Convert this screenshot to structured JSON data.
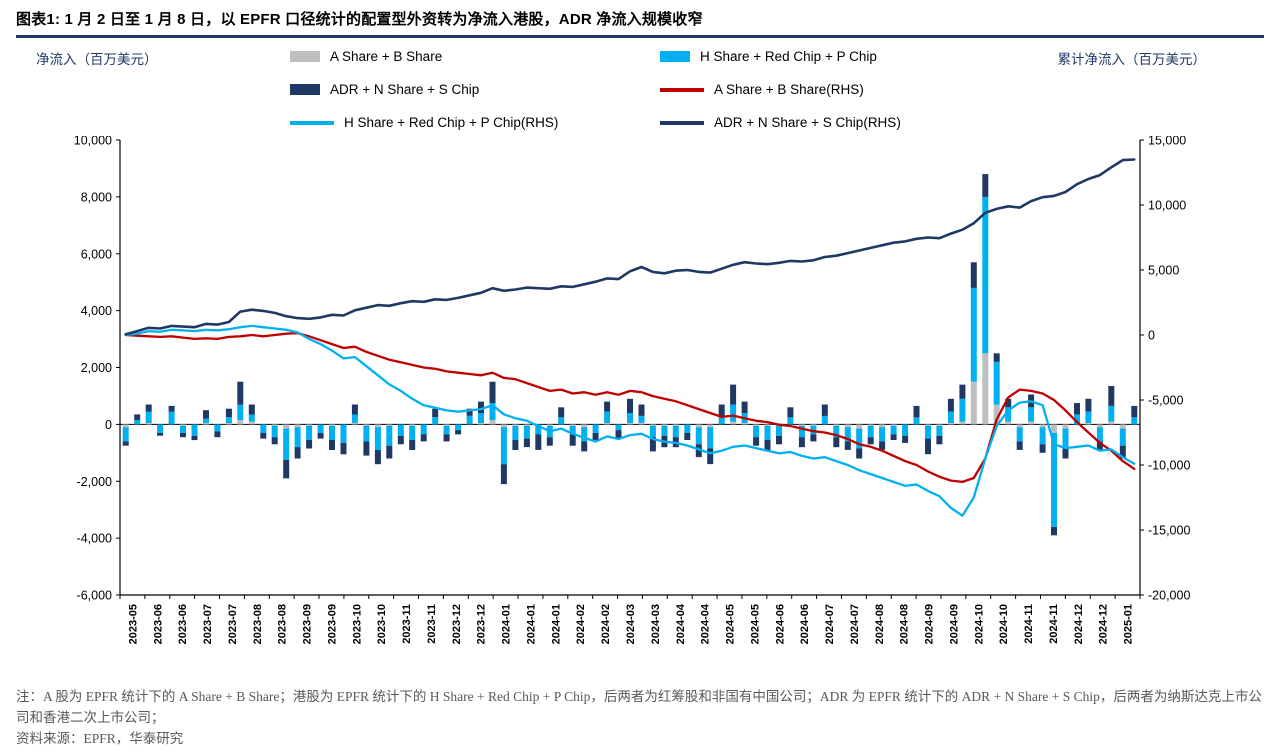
{
  "header": {
    "title": "图表1:  1 月 2 日至 1 月 8 日，以 EPFR 口径统计的配置型外资转为净流入港股，ADR 净流入规模收窄"
  },
  "axes": {
    "left_label": "净流入（百万美元）",
    "right_label": "累计净流入（百万美元）"
  },
  "legend": {
    "items": [
      {
        "label": "A Share + B Share",
        "swatch": "bar",
        "color": "#BFBFBF"
      },
      {
        "label": "H Share + Red Chip + P Chip",
        "swatch": "bar",
        "color": "#00B0F0"
      },
      {
        "label": "ADR + N Share + S Chip",
        "swatch": "bar",
        "color": "#1F3864"
      },
      {
        "label": "A Share + B Share(RHS)",
        "swatch": "line",
        "color": "#C00000"
      },
      {
        "label": "H Share + Red Chip + P Chip(RHS)",
        "swatch": "line",
        "color": "#00B0F0"
      },
      {
        "label": "ADR + N Share + S Chip(RHS)",
        "swatch": "line",
        "color": "#1F3864"
      }
    ]
  },
  "chart_data": {
    "type": "combo-stacked-bar-line",
    "title": "1月2日至1月8日，以EPFR口径统计的配置型外资转为净流入港股，ADR净流入规模收窄",
    "frequency": "weekly",
    "x_start": "2023-05",
    "x_end": "2025-01",
    "n_points": 89,
    "x_tick_labels": [
      "2023-05",
      "2023-06",
      "2023-06",
      "2023-07",
      "2023-07",
      "2023-08",
      "2023-08",
      "2023-09",
      "2023-09",
      "2023-10",
      "2023-10",
      "2023-11",
      "2023-11",
      "2023-12",
      "2023-12",
      "2024-01",
      "2024-01",
      "2024-01",
      "2024-02",
      "2024-02",
      "2024-03",
      "2024-03",
      "2024-04",
      "2024-04",
      "2024-05",
      "2024-05",
      "2024-06",
      "2024-06",
      "2024-07",
      "2024-07",
      "2024-08",
      "2024-08",
      "2024-09",
      "2024-09",
      "2024-10",
      "2024-10",
      "2024-11",
      "2024-11",
      "2024-12",
      "2024-12",
      "2025-01"
    ],
    "left_axis": {
      "label": "净流入（百万美元）",
      "min": -6000,
      "max": 10000,
      "ticks": [
        10000,
        8000,
        6000,
        4000,
        2000,
        0,
        -2000,
        -4000,
        -6000
      ]
    },
    "right_axis": {
      "label": "累计净流入（百万美元）",
      "min": -20000,
      "max": 15000,
      "ticks": [
        15000,
        10000,
        5000,
        0,
        -5000,
        -10000,
        -15000,
        -20000
      ]
    },
    "bar_series": [
      {
        "name": "A Share + B Share",
        "axis": "left",
        "color": "#BFBFBF",
        "values": [
          -100,
          0,
          50,
          0,
          0,
          -50,
          0,
          50,
          0,
          50,
          150,
          100,
          0,
          -50,
          -150,
          -100,
          -50,
          0,
          -50,
          0,
          50,
          -50,
          -100,
          -50,
          0,
          -50,
          0,
          0,
          -50,
          0,
          0,
          50,
          150,
          -100,
          -50,
          -50,
          0,
          -50,
          0,
          -50,
          -100,
          0,
          50,
          0,
          50,
          50,
          -50,
          -50,
          -50,
          0,
          -100,
          -100,
          0,
          100,
          50,
          -50,
          -50,
          -50,
          0,
          -50,
          -50,
          0,
          -50,
          -100,
          -150,
          -50,
          -100,
          -50,
          0,
          0,
          -50,
          -50,
          50,
          100,
          1500,
          2500,
          700,
          100,
          -100,
          100,
          -100,
          -300,
          -150,
          0,
          50,
          -100,
          100,
          -150,
          0
        ]
      },
      {
        "name": "H Share + Red Chip + P Chip",
        "axis": "left",
        "color": "#00B0F0",
        "values": [
          -500,
          150,
          400,
          -300,
          450,
          -250,
          -400,
          150,
          -250,
          200,
          550,
          250,
          -300,
          -400,
          -1100,
          -700,
          -500,
          -300,
          -500,
          -650,
          300,
          -550,
          -800,
          -700,
          -400,
          -500,
          -350,
          250,
          -300,
          -200,
          300,
          350,
          600,
          -1300,
          -500,
          -450,
          -350,
          -400,
          250,
          -300,
          -500,
          -300,
          400,
          -200,
          350,
          250,
          -400,
          -350,
          -400,
          -300,
          -600,
          -750,
          300,
          600,
          350,
          -400,
          -500,
          -350,
          250,
          -400,
          -300,
          300,
          -400,
          -500,
          -700,
          -400,
          -500,
          -300,
          -400,
          250,
          -450,
          -350,
          400,
          800,
          3300,
          5500,
          1500,
          500,
          -500,
          500,
          -600,
          -3300,
          -700,
          350,
          400,
          -500,
          550,
          -600,
          250
        ]
      },
      {
        "name": "ADR + N Share + S Chip",
        "axis": "left",
        "color": "#1F3864",
        "values": [
          -150,
          200,
          250,
          -100,
          200,
          -150,
          -150,
          300,
          -200,
          300,
          800,
          350,
          -200,
          -250,
          -650,
          -400,
          -300,
          -200,
          -350,
          -400,
          350,
          -500,
          -500,
          -450,
          -300,
          -350,
          -250,
          300,
          -250,
          -150,
          250,
          400,
          750,
          -700,
          -350,
          -300,
          -550,
          -300,
          350,
          -400,
          -350,
          -250,
          350,
          -300,
          500,
          400,
          -500,
          -400,
          -350,
          -250,
          -450,
          -550,
          400,
          700,
          400,
          -300,
          -400,
          -300,
          350,
          -350,
          -250,
          400,
          -350,
          -300,
          -350,
          -250,
          -300,
          -200,
          -250,
          400,
          -550,
          -300,
          450,
          500,
          900,
          800,
          300,
          300,
          -300,
          450,
          -300,
          -300,
          -350,
          400,
          450,
          -300,
          700,
          -450,
          400
        ]
      }
    ],
    "line_series": [
      {
        "name": "A Share + B Share(RHS)",
        "axis": "right",
        "color": "#C00000",
        "values": [
          0,
          -50,
          -100,
          -150,
          -100,
          -200,
          -300,
          -250,
          -300,
          -150,
          -100,
          0,
          -100,
          0,
          100,
          150,
          -100,
          -400,
          -700,
          -1000,
          -900,
          -1300,
          -1600,
          -1900,
          -2100,
          -2300,
          -2500,
          -2600,
          -2800,
          -2900,
          -3000,
          -3100,
          -2900,
          -3300,
          -3400,
          -3700,
          -4000,
          -4300,
          -4200,
          -4500,
          -4400,
          -4600,
          -4400,
          -4600,
          -4300,
          -4400,
          -4700,
          -4900,
          -5100,
          -5400,
          -5700,
          -6000,
          -6300,
          -6200,
          -6400,
          -6600,
          -6700,
          -6900,
          -7000,
          -7200,
          -7400,
          -7500,
          -7700,
          -8000,
          -8400,
          -8600,
          -8900,
          -9300,
          -9700,
          -10000,
          -10500,
          -10900,
          -11200,
          -11300,
          -11000,
          -9500,
          -6500,
          -4800,
          -4200,
          -4300,
          -4500,
          -5000,
          -5800,
          -6700,
          -7500,
          -8300,
          -8900,
          -9700,
          -10300
        ]
      },
      {
        "name": "H Share + Red Chip + P Chip(RHS)",
        "axis": "right",
        "color": "#00B0F0",
        "values": [
          0,
          100,
          300,
          250,
          400,
          350,
          300,
          400,
          350,
          450,
          600,
          700,
          600,
          500,
          400,
          200,
          -300,
          -700,
          -1200,
          -1800,
          -1700,
          -2400,
          -3100,
          -3800,
          -4300,
          -4900,
          -5400,
          -5600,
          -5800,
          -5900,
          -5800,
          -5700,
          -5400,
          -6100,
          -6400,
          -6600,
          -7000,
          -7400,
          -7200,
          -7600,
          -7900,
          -8200,
          -7800,
          -8000,
          -7700,
          -7600,
          -8000,
          -8200,
          -8300,
          -8500,
          -8800,
          -9100,
          -8900,
          -8600,
          -8500,
          -8700,
          -8900,
          -9100,
          -9000,
          -9300,
          -9500,
          -9400,
          -9700,
          -10000,
          -10400,
          -10700,
          -11000,
          -11300,
          -11600,
          -11500,
          -12000,
          -12400,
          -13300,
          -13900,
          -12500,
          -9500,
          -7000,
          -5800,
          -5200,
          -5100,
          -5400,
          -8400,
          -8700,
          -8600,
          -8500,
          -8900,
          -8800,
          -9400,
          -9900
        ]
      },
      {
        "name": "ADR + N Share + S Chip(RHS)",
        "axis": "right",
        "color": "#1F3864",
        "values": [
          50,
          300,
          550,
          500,
          700,
          650,
          600,
          850,
          800,
          1000,
          1800,
          1950,
          1850,
          1700,
          1450,
          1300,
          1250,
          1350,
          1550,
          1500,
          1900,
          2100,
          2300,
          2250,
          2450,
          2600,
          2550,
          2750,
          2700,
          2850,
          3050,
          3250,
          3600,
          3400,
          3500,
          3650,
          3600,
          3550,
          3750,
          3700,
          3900,
          4100,
          4350,
          4300,
          4900,
          5230,
          4850,
          4750,
          4950,
          5000,
          4850,
          4800,
          5100,
          5400,
          5600,
          5500,
          5450,
          5550,
          5700,
          5650,
          5750,
          6000,
          6100,
          6300,
          6500,
          6700,
          6900,
          7100,
          7200,
          7400,
          7500,
          7450,
          7800,
          8100,
          8600,
          9400,
          9700,
          9900,
          9800,
          10300,
          10600,
          10700,
          11000,
          11600,
          12000,
          12300,
          12900,
          13450,
          13500
        ]
      }
    ]
  },
  "notes": {
    "note": "注：A 股为 EPFR 统计下的 A Share + B Share；港股为 EPFR 统计下的 H Share + Red Chip + P Chip，后两者为红筹股和非国有中国公司；ADR 为 EPFR 统计下的 ADR + N Share + S Chip，后两者为纳斯达克上市公司和香港二次上市公司；",
    "source": "资料来源：EPFR，华泰研究"
  }
}
